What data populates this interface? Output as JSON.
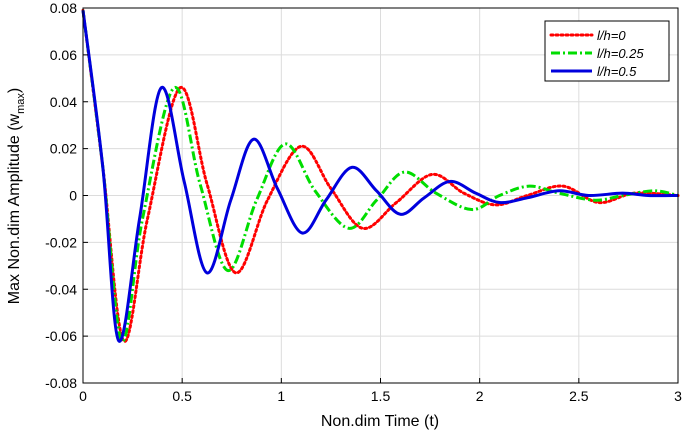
{
  "chart_data": {
    "type": "line",
    "xlabel": "Non.dim Time (t)",
    "ylabel_main": "Max Non.dim Amplitude (w",
    "ylabel_sub": "max",
    "ylabel_close": ")",
    "xlim": [
      0,
      3
    ],
    "ylim": [
      -0.08,
      0.08
    ],
    "xticks": [
      0,
      0.5,
      1,
      1.5,
      2,
      2.5,
      3
    ],
    "xtick_labels": [
      "0",
      "0.5",
      "1",
      "1.5",
      "2",
      "2.5",
      "3"
    ],
    "yticks": [
      -0.08,
      -0.06,
      -0.04,
      -0.02,
      0,
      0.02,
      0.04,
      0.06,
      0.08
    ],
    "ytick_labels": [
      "-0.08",
      "-0.06",
      "-0.04",
      "-0.02",
      "0",
      "0.02",
      "0.04",
      "0.06",
      "0.08"
    ],
    "grid": true,
    "legend_position": "top-right",
    "series": [
      {
        "name": "l/h=0",
        "color": "#ff0000",
        "style": "dotted",
        "x": [
          0,
          0.1,
          0.205,
          0.325,
          0.49,
          0.625,
          0.77,
          0.93,
          1.1,
          1.25,
          1.41,
          1.58,
          1.76,
          1.92,
          2.08,
          2.24,
          2.42,
          2.6,
          2.78,
          3.0
        ],
        "y": [
          0.079,
          0.012,
          -0.062,
          -0.01,
          0.046,
          0.005,
          -0.033,
          -0.002,
          0.021,
          0.003,
          -0.014,
          -0.003,
          0.009,
          0.001,
          -0.004,
          0.0,
          0.004,
          -0.003,
          0.001,
          0.0
        ]
      },
      {
        "name": "l/h=0.25",
        "color": "#00dd00",
        "style": "dashdot",
        "x": [
          0,
          0.1,
          0.195,
          0.3,
          0.46,
          0.59,
          0.73,
          0.875,
          1.02,
          1.17,
          1.34,
          1.48,
          1.62,
          1.78,
          1.96,
          2.1,
          2.25,
          2.4,
          2.58,
          2.72,
          2.88,
          3.0
        ],
        "y": [
          0.079,
          0.012,
          -0.062,
          -0.01,
          0.046,
          0.005,
          -0.032,
          -0.002,
          0.022,
          0.002,
          -0.014,
          -0.002,
          0.01,
          0.001,
          -0.006,
          0.0,
          0.004,
          0.001,
          -0.002,
          0.0,
          0.002,
          0.0
        ]
      },
      {
        "name": "l/h=0.5",
        "color": "#0000dd",
        "style": "solid",
        "x": [
          0,
          0.1,
          0.18,
          0.285,
          0.395,
          0.51,
          0.625,
          0.745,
          0.86,
          0.98,
          1.105,
          1.225,
          1.355,
          1.48,
          1.6,
          1.72,
          1.85,
          1.98,
          2.1,
          2.24,
          2.4,
          2.55,
          2.72,
          2.85,
          3.0
        ],
        "y": [
          0.079,
          0.012,
          -0.062,
          -0.01,
          0.046,
          0.006,
          -0.033,
          -0.002,
          0.024,
          0.003,
          -0.016,
          -0.002,
          0.012,
          0.002,
          -0.008,
          -0.001,
          0.006,
          0.001,
          -0.003,
          -0.001,
          0.002,
          0.0,
          0.001,
          0.0,
          0.0
        ]
      }
    ]
  }
}
